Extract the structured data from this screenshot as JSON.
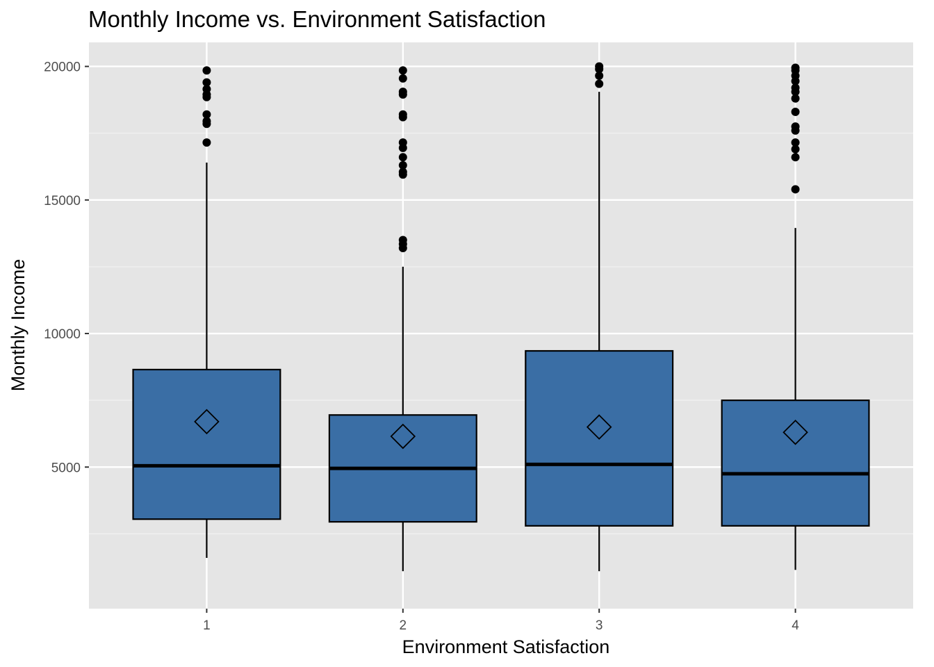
{
  "chart_data": {
    "type": "box",
    "title": "Monthly Income vs. Environment Satisfaction",
    "xlabel": "Environment Satisfaction",
    "ylabel": "Monthly Income",
    "categories": [
      "1",
      "2",
      "3",
      "4"
    ],
    "y_ticks": [
      "5000",
      "10000",
      "15000",
      "20000"
    ],
    "ylim": [
      -300,
      20900
    ],
    "grid": true,
    "fill_color": "#3a6ea5",
    "panel_color": "#e5e5e5",
    "boxes": [
      {
        "category": "1",
        "whisker_low": 1600,
        "q1": 3050,
        "median": 5050,
        "q3": 8650,
        "whisker_high": 16400,
        "mean": 6700,
        "outliers": [
          17150,
          17850,
          17950,
          18200,
          18850,
          18950,
          19150,
          19400,
          19850
        ]
      },
      {
        "category": "2",
        "whisker_low": 1100,
        "q1": 2950,
        "median": 4950,
        "q3": 6950,
        "whisker_high": 12500,
        "mean": 6150,
        "outliers": [
          13200,
          13350,
          13500,
          15950,
          16050,
          16300,
          16600,
          16950,
          17150,
          18100,
          18200,
          18950,
          19050,
          19550,
          19850
        ]
      },
      {
        "category": "3",
        "whisker_low": 1100,
        "q1": 2800,
        "median": 5100,
        "q3": 9350,
        "whisker_high": 19050,
        "mean": 6500,
        "outliers": [
          19350,
          19650,
          19900,
          20000
        ]
      },
      {
        "category": "4",
        "whisker_low": 1150,
        "q1": 2800,
        "median": 4750,
        "q3": 7500,
        "whisker_high": 13950,
        "mean": 6300,
        "outliers": [
          15400,
          16600,
          16900,
          17150,
          17600,
          17750,
          18300,
          18800,
          19050,
          19200,
          19450,
          19650,
          19850,
          19950
        ]
      }
    ]
  }
}
